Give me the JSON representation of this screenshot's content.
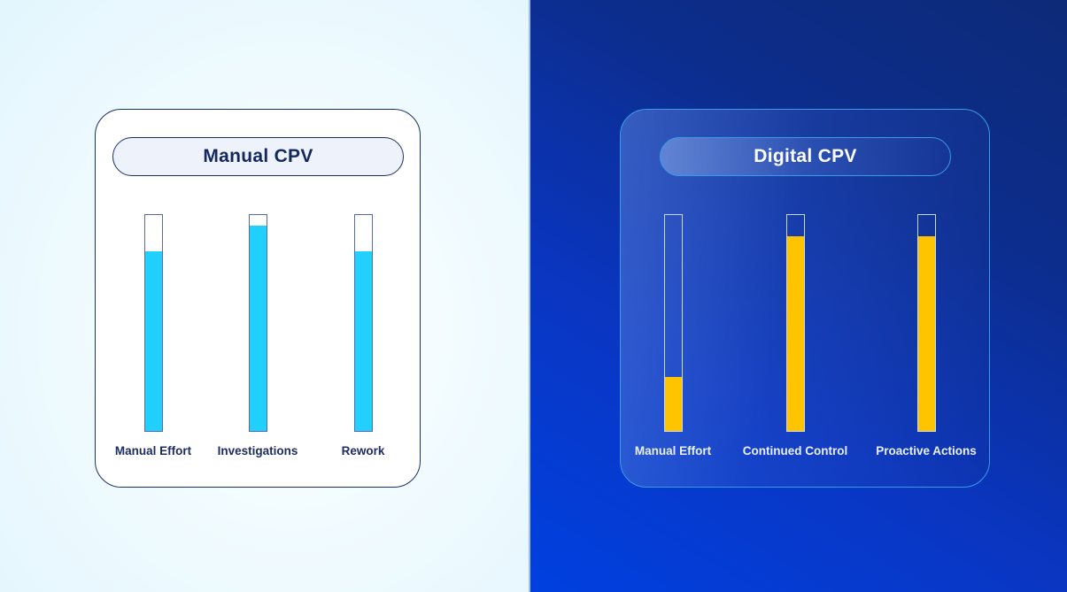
{
  "colors": {
    "manual_fill": "#21d0fc",
    "digital_fill": "#ffc400",
    "manual_text": "#14285e",
    "digital_text": "#ffffff",
    "right_bg_top": "#0d2a78",
    "right_bg_bottom": "#0040e0"
  },
  "manual": {
    "title": "Manual CPV",
    "bars": [
      {
        "label": "Manual Effort",
        "value": 83
      },
      {
        "label": "Investigations",
        "value": 95
      },
      {
        "label": "Rework",
        "value": 83
      }
    ]
  },
  "digital": {
    "title": "Digital CPV",
    "bars": [
      {
        "label": "Manual Effort",
        "value": 25
      },
      {
        "label": "Continued Control",
        "value": 90
      },
      {
        "label": "Proactive Actions",
        "value": 90
      }
    ]
  },
  "chart_data": [
    {
      "type": "bar",
      "title": "Manual CPV",
      "categories": [
        "Manual Effort",
        "Investigations",
        "Rework"
      ],
      "values": [
        83,
        95,
        83
      ],
      "xlabel": "",
      "ylabel": "",
      "ylim": [
        0,
        100
      ],
      "grid": false,
      "legend": "none",
      "orientation": "vertical",
      "note": "Unlabeled fill-level bars; values estimated as percent of track height"
    },
    {
      "type": "bar",
      "title": "Digital CPV",
      "categories": [
        "Manual Effort",
        "Continued Control",
        "Proactive Actions"
      ],
      "values": [
        25,
        90,
        90
      ],
      "xlabel": "",
      "ylabel": "",
      "ylim": [
        0,
        100
      ],
      "grid": false,
      "legend": "none",
      "orientation": "vertical",
      "note": "Unlabeled fill-level bars; values estimated as percent of track height"
    }
  ]
}
